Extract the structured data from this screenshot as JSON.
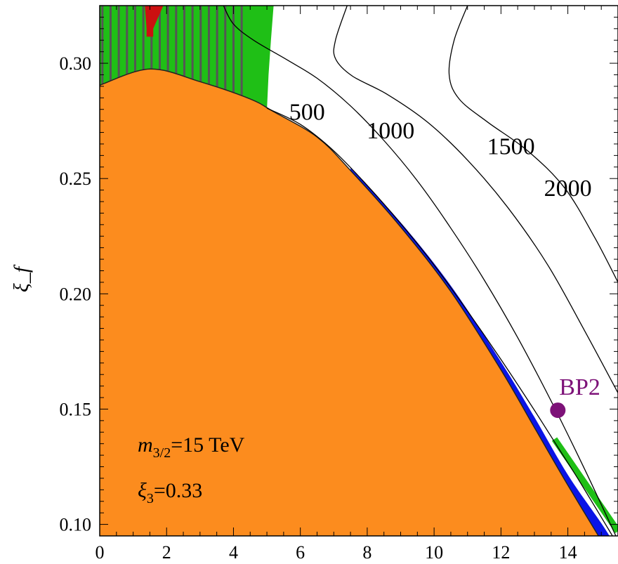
{
  "chart_data": {
    "type": "region",
    "xlabel": "",
    "ylabel": "ξ_f",
    "xlim": [
      0,
      15.5
    ],
    "ylim": [
      0.095,
      0.325
    ],
    "x_ticks": [
      "0",
      "2",
      "4",
      "6",
      "8",
      "10",
      "12",
      "14"
    ],
    "y_ticks": [
      "0.10",
      "0.15",
      "0.20",
      "0.25",
      "0.30"
    ],
    "grid": false,
    "colors": {
      "orange_region": "#fc8c1e",
      "green_region": "#1fbf16",
      "green_hatch": "#555555",
      "red_region": "#cc1010",
      "blue_band": "#0a14e6",
      "contour": "#000000",
      "bp_point": "#7d1278"
    },
    "regions": {
      "orange_boundary": [
        [
          0,
          0.2905
        ],
        [
          1.5,
          0.2975
        ],
        [
          3,
          0.292
        ],
        [
          4.5,
          0.2845
        ],
        [
          5.2,
          0.279
        ],
        [
          6.5,
          0.268
        ],
        [
          7.5,
          0.2535
        ],
        [
          9,
          0.229
        ],
        [
          10.5,
          0.201
        ],
        [
          12,
          0.167
        ],
        [
          13,
          0.142
        ],
        [
          14,
          0.117
        ],
        [
          15,
          0.093
        ]
      ],
      "green_top_boundary": [
        [
          0,
          0.325
        ],
        [
          5.2,
          0.325
        ],
        [
          5.12,
          0.31
        ],
        [
          5.05,
          0.295
        ],
        [
          5.0,
          0.28
        ]
      ],
      "red_spike": [
        [
          1.35,
          0.325
        ],
        [
          1.9,
          0.325
        ],
        [
          1.6,
          0.315
        ],
        [
          1.6,
          0.3115
        ],
        [
          1.4,
          0.3115
        ],
        [
          1.4,
          0.315
        ]
      ],
      "blue_upper_edge": [
        [
          7.5,
          0.2545
        ],
        [
          9,
          0.231
        ],
        [
          10.5,
          0.2035
        ],
        [
          12,
          0.1705
        ],
        [
          13,
          0.1465
        ],
        [
          14,
          0.1215
        ],
        [
          15,
          0.1005
        ],
        [
          15.5,
          0.089
        ]
      ],
      "green_sliver": [
        [
          13.6,
          0.137
        ],
        [
          15.5,
          0.097
        ]
      ]
    },
    "contours": [
      {
        "label": "500",
        "points": [
          [
            5.0,
            0.2805
          ],
          [
            6,
            0.2735
          ],
          [
            7,
            0.262
          ],
          [
            8,
            0.247
          ],
          [
            9,
            0.2305
          ],
          [
            10,
            0.2125
          ],
          [
            11,
            0.1925
          ],
          [
            12,
            0.1715
          ],
          [
            13,
            0.1495
          ],
          [
            13.7,
            0.1335
          ],
          [
            14.4,
            0.1175
          ],
          [
            15.5,
            0.091
          ]
        ]
      },
      {
        "label": "1000",
        "points": [
          [
            3.7,
            0.325
          ],
          [
            4.0,
            0.317
          ],
          [
            4.6,
            0.31
          ],
          [
            5.6,
            0.3015
          ],
          [
            6.5,
            0.2935
          ],
          [
            7.5,
            0.2815
          ],
          [
            8.5,
            0.2665
          ],
          [
            9.5,
            0.249
          ],
          [
            10.5,
            0.2285
          ],
          [
            11.5,
            0.206
          ],
          [
            12.5,
            0.181
          ],
          [
            13.5,
            0.1535
          ],
          [
            14.5,
            0.124
          ],
          [
            15.5,
            0.093
          ]
        ]
      },
      {
        "label": "1500",
        "points": [
          [
            7.4,
            0.325
          ],
          [
            7.05,
            0.31
          ],
          [
            7.05,
            0.302
          ],
          [
            7.55,
            0.2945
          ],
          [
            8.6,
            0.2865
          ],
          [
            9.8,
            0.2745
          ],
          [
            11,
            0.258
          ],
          [
            12.2,
            0.2375
          ],
          [
            13.4,
            0.2125
          ],
          [
            14.5,
            0.184
          ],
          [
            15.5,
            0.157
          ]
        ]
      },
      {
        "label": "2000",
        "points": [
          [
            11.0,
            0.325
          ],
          [
            10.6,
            0.31
          ],
          [
            10.45,
            0.295
          ],
          [
            10.75,
            0.2845
          ],
          [
            11.6,
            0.2745
          ],
          [
            12.8,
            0.262
          ],
          [
            13.9,
            0.246
          ],
          [
            14.8,
            0.2245
          ],
          [
            15.5,
            0.205
          ]
        ]
      }
    ],
    "contour_labels": [
      {
        "text": "500",
        "x": 6.2,
        "y": 0.2755
      },
      {
        "text": "1000",
        "x": 8.7,
        "y": 0.2675
      },
      {
        "text": "1500",
        "x": 12.3,
        "y": 0.2605
      },
      {
        "text": "2000",
        "x": 14.0,
        "y": 0.2425
      }
    ],
    "points": [
      {
        "name": "BP2",
        "x": 13.7,
        "y": 0.1495
      }
    ],
    "annotations": [
      {
        "text_main": "m",
        "text_sub": "3/2",
        "text_rest": "=15 TeV"
      },
      {
        "text_main": "ξ",
        "text_sub": "3",
        "text_rest": "=0.33"
      }
    ]
  }
}
